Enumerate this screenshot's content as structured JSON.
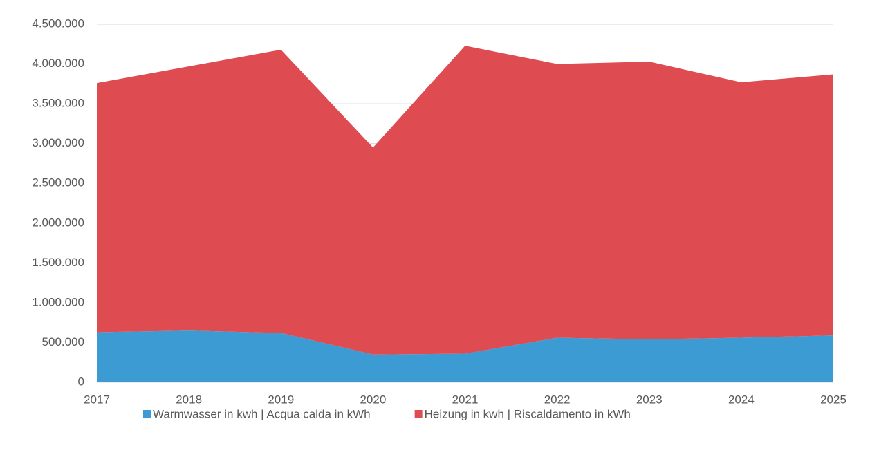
{
  "chart_data": {
    "type": "stacked_area",
    "categories": [
      "2017",
      "2018",
      "2019",
      "2020",
      "2021",
      "2022",
      "2023",
      "2024",
      "2025"
    ],
    "series": [
      {
        "name": "Warmwasser in kwh | Acqua calda in kWh",
        "color": "#3d9bd3",
        "values": [
          630000,
          650000,
          620000,
          350000,
          360000,
          560000,
          540000,
          560000,
          590000
        ]
      },
      {
        "name": "Heizung in kwh | Riscaldamento in kWh",
        "color": "#de4c52",
        "values": [
          3130000,
          3320000,
          3560000,
          2600000,
          3870000,
          3440000,
          3490000,
          3210000,
          3280000
        ]
      }
    ],
    "ylim": [
      0,
      4500000
    ],
    "yticks": [
      0,
      {
        "value": 500000,
        "label": "500.000"
      },
      {
        "value": 1000000,
        "label": "1.000.000"
      },
      {
        "value": 1500000,
        "label": "1.500.000"
      },
      {
        "value": 2000000,
        "label": "2.000.000"
      },
      {
        "value": 2500000,
        "label": "2.500.000"
      },
      {
        "value": 3000000,
        "label": "3.000.000"
      },
      {
        "value": 3500000,
        "label": "3.500.000"
      },
      {
        "value": 4000000,
        "label": "4.000.000"
      },
      {
        "value": 4500000,
        "label": "4.500.000"
      }
    ],
    "grid": true,
    "legend": "bottom"
  }
}
